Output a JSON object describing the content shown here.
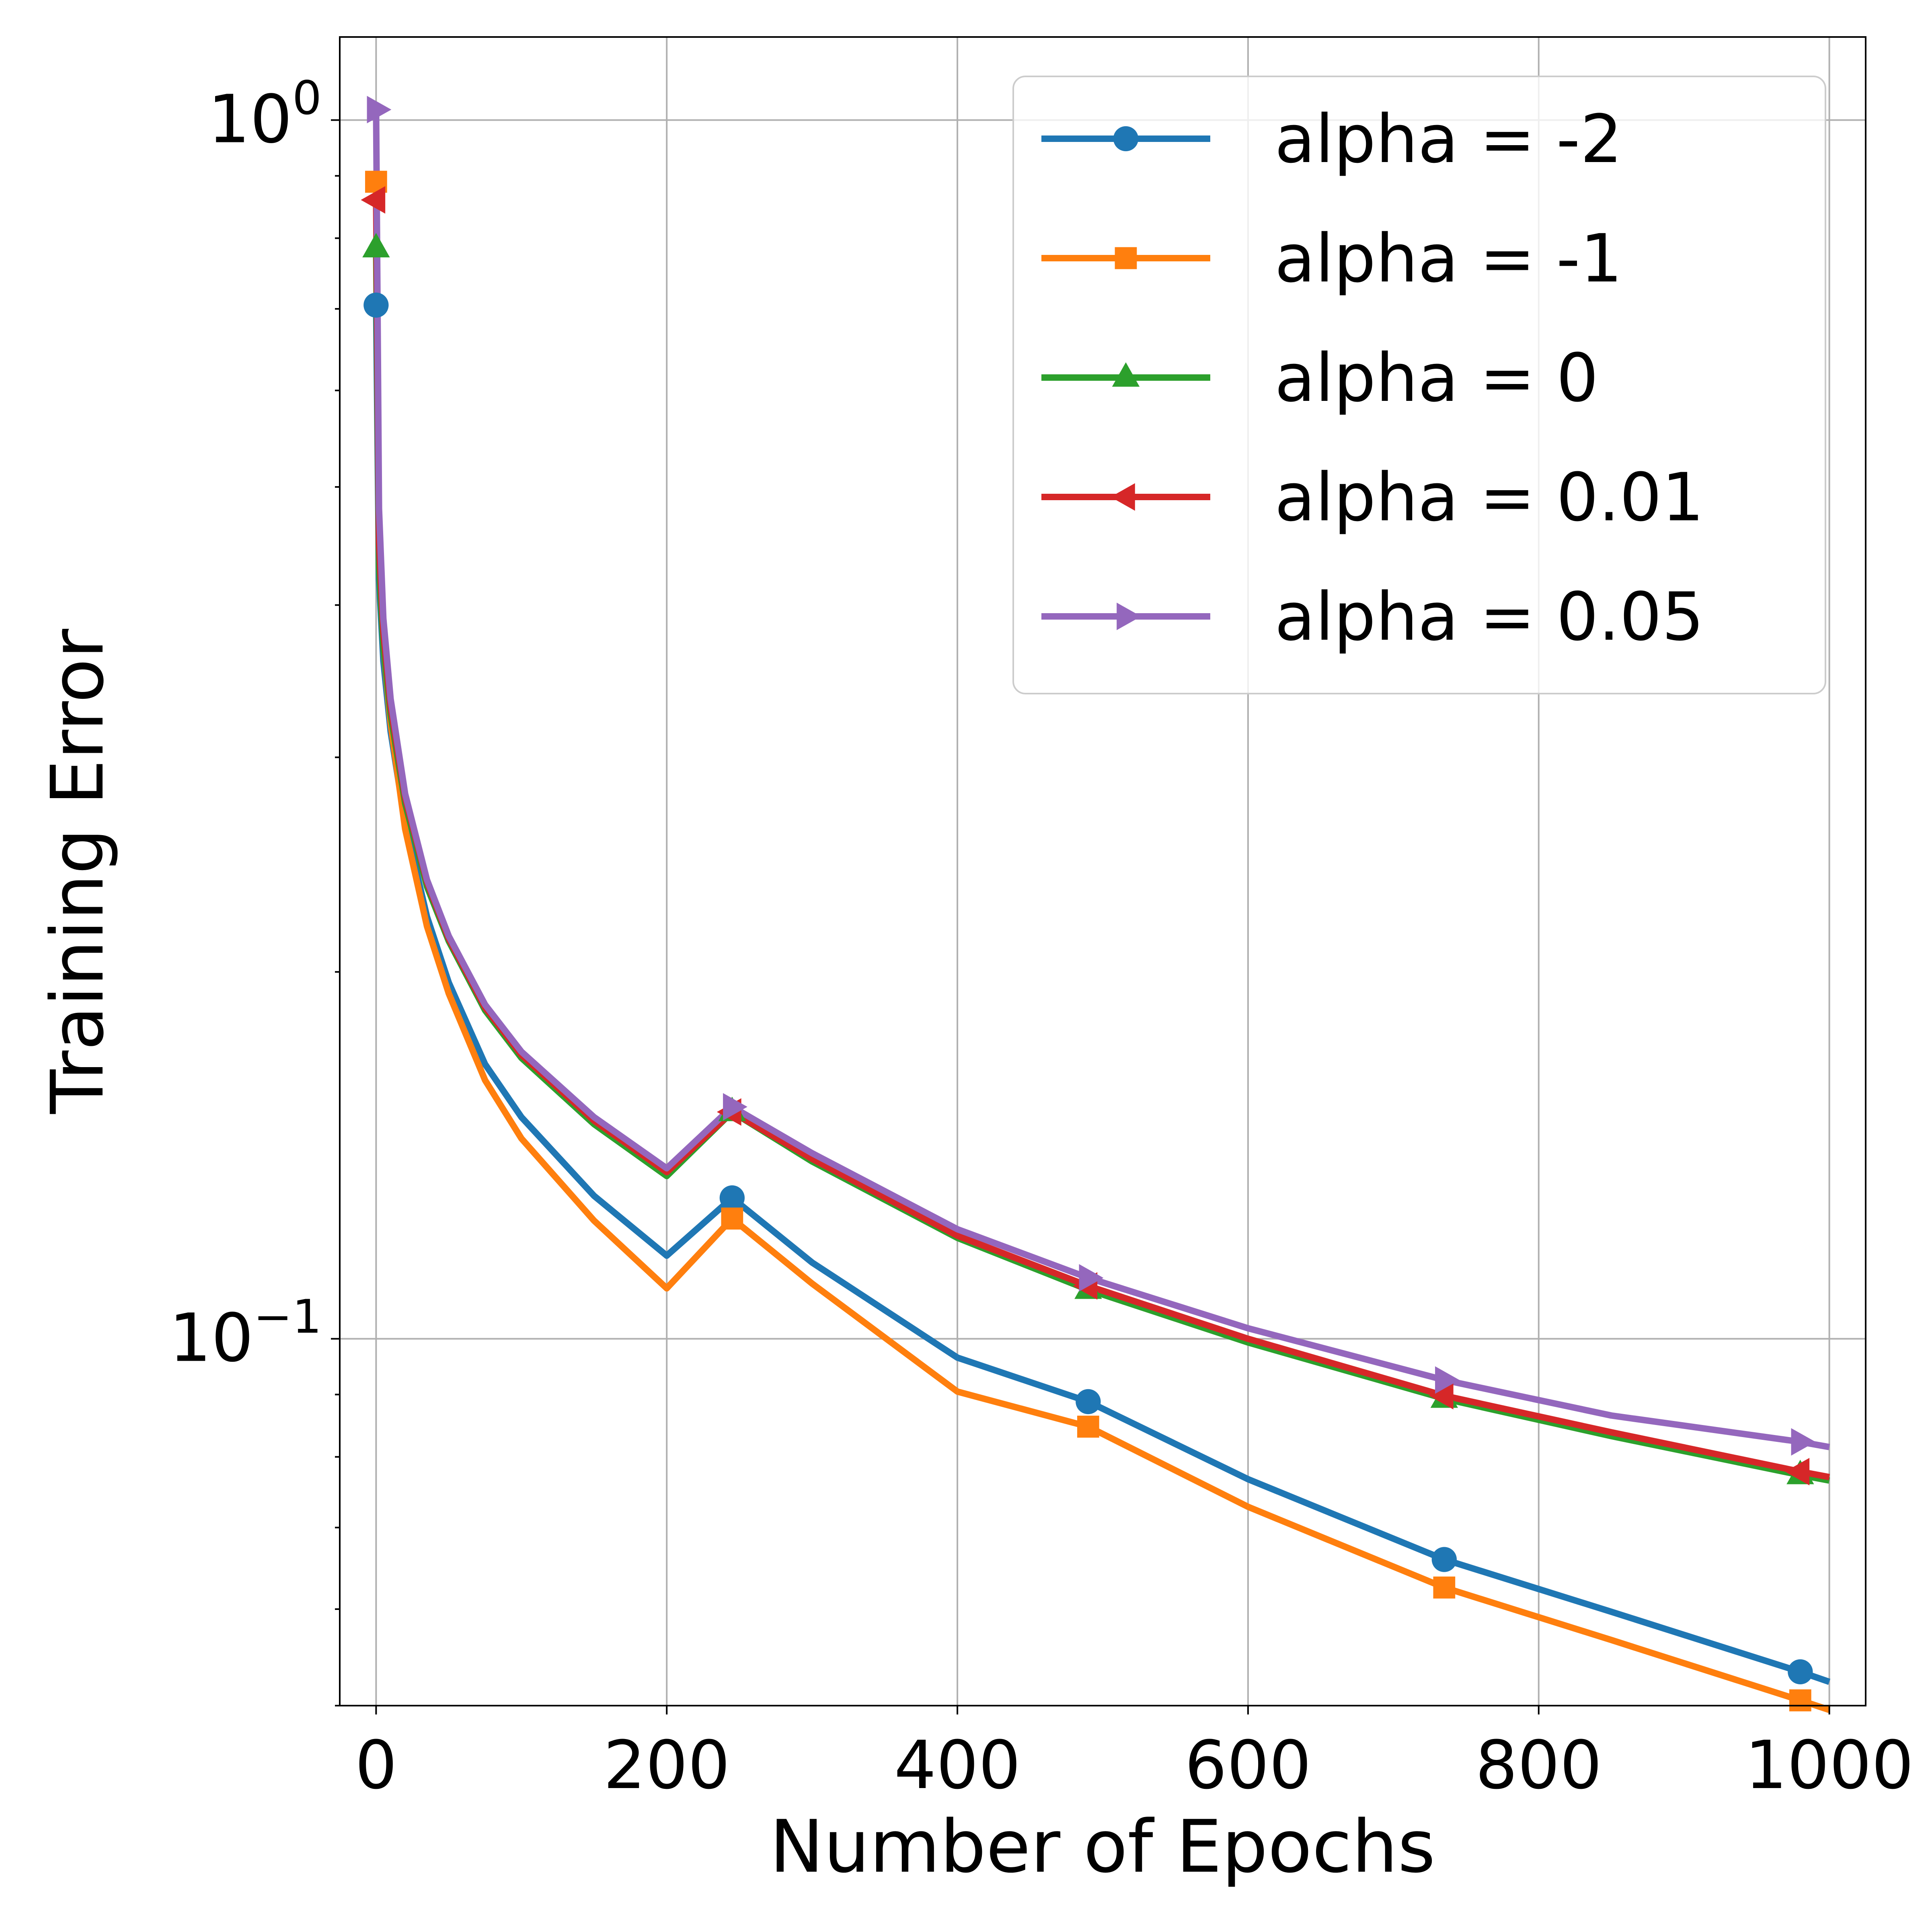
{
  "chart_data": {
    "type": "line",
    "title": "",
    "xlabel": "Number of Epochs",
    "ylabel": "Training Error",
    "xscale": "linear",
    "yscale": "log",
    "xlim": [
      -25,
      1025
    ],
    "ylim": [
      0.05,
      1.17
    ],
    "grid": true,
    "legend_position": "top-right",
    "x_ticks": [
      {
        "value": 0,
        "label": "0"
      },
      {
        "value": 200,
        "label": "200"
      },
      {
        "value": 400,
        "label": "400"
      },
      {
        "value": 600,
        "label": "600"
      },
      {
        "value": 800,
        "label": "800"
      },
      {
        "value": 1000,
        "label": "1000"
      }
    ],
    "y_ticks": [
      {
        "value": 1,
        "base": "10",
        "exponent": "0"
      },
      {
        "value": 0.1,
        "base": "10",
        "exponent": "−1"
      }
    ],
    "y_minor_ticks": [
      0.05,
      0.06,
      0.07,
      0.08,
      0.09,
      0.2,
      0.3,
      0.4,
      0.5,
      0.6,
      0.7,
      0.8,
      0.9
    ],
    "series": [
      {
        "name": "alpha = -2",
        "color": "#1f77b4",
        "marker": "circle",
        "curve_x": [
          0,
          2,
          5,
          10,
          20,
          35,
          50,
          75,
          100,
          150,
          200,
          245,
          300,
          400,
          490,
          600,
          735,
          850,
          980,
          1000
        ],
        "curve_y": [
          0.705,
          0.42,
          0.36,
          0.315,
          0.265,
          0.222,
          0.196,
          0.168,
          0.152,
          0.131,
          0.117,
          0.1305,
          0.1155,
          0.0965,
          0.0888,
          0.0767,
          0.0659,
          0.0597,
          0.0533,
          0.0523
        ],
        "marker_x": [
          0,
          245,
          490,
          735,
          980
        ],
        "marker_y": [
          0.705,
          0.1305,
          0.0888,
          0.0659,
          0.0533
        ]
      },
      {
        "name": "alpha = -1",
        "color": "#ff7f0e",
        "marker": "square",
        "curve_x": [
          0,
          2,
          5,
          10,
          20,
          35,
          50,
          75,
          100,
          150,
          200,
          245,
          300,
          400,
          490,
          600,
          735,
          850,
          980,
          1000
        ],
        "curve_y": [
          0.89,
          0.45,
          0.37,
          0.32,
          0.262,
          0.218,
          0.192,
          0.163,
          0.146,
          0.125,
          0.11,
          0.1255,
          0.111,
          0.0905,
          0.0847,
          0.0728,
          0.0625,
          0.0566,
          0.0505,
          0.0496
        ],
        "marker_x": [
          0,
          245,
          490,
          735,
          980
        ],
        "marker_y": [
          0.89,
          0.1255,
          0.0847,
          0.0625,
          0.0505
        ]
      },
      {
        "name": "alpha = 0",
        "color": "#2ca02c",
        "marker": "triangle-up",
        "curve_x": [
          0,
          2,
          5,
          10,
          20,
          35,
          50,
          75,
          100,
          150,
          200,
          245,
          300,
          400,
          490,
          600,
          735,
          850,
          980,
          1000
        ],
        "curve_y": [
          0.785,
          0.43,
          0.37,
          0.325,
          0.275,
          0.235,
          0.212,
          0.186,
          0.17,
          0.15,
          0.136,
          0.1535,
          0.1398,
          0.121,
          0.1097,
          0.0993,
          0.0893,
          0.0832,
          0.0773,
          0.0765
        ],
        "marker_x": [
          0,
          245,
          490,
          735,
          980
        ],
        "marker_y": [
          0.785,
          0.1535,
          0.1097,
          0.0893,
          0.0773
        ]
      },
      {
        "name": "alpha = 0.01",
        "color": "#d62728",
        "marker": "triangle-left",
        "curve_x": [
          0,
          2,
          5,
          10,
          20,
          35,
          50,
          75,
          100,
          150,
          200,
          245,
          300,
          400,
          490,
          600,
          735,
          850,
          980,
          1000
        ],
        "curve_y": [
          0.86,
          0.45,
          0.38,
          0.33,
          0.278,
          0.237,
          0.213,
          0.187,
          0.171,
          0.151,
          0.137,
          0.1535,
          0.1405,
          0.1215,
          0.1105,
          0.1,
          0.0898,
          0.0838,
          0.0778,
          0.077
        ],
        "marker_x": [
          0,
          245,
          490,
          735,
          980
        ],
        "marker_y": [
          0.86,
          0.1535,
          0.1105,
          0.0898,
          0.0778
        ]
      },
      {
        "name": "alpha = 0.05",
        "color": "#9467bd",
        "marker": "triangle-right",
        "curve_x": [
          0,
          2,
          5,
          10,
          20,
          35,
          50,
          75,
          100,
          150,
          200,
          245,
          300,
          400,
          490,
          600,
          735,
          850,
          980,
          1000
        ],
        "curve_y": [
          1.02,
          0.48,
          0.39,
          0.335,
          0.28,
          0.238,
          0.214,
          0.188,
          0.172,
          0.152,
          0.138,
          0.155,
          0.142,
          0.123,
          0.1122,
          0.102,
          0.0925,
          0.0865,
          0.0823,
          0.0815
        ],
        "marker_x": [
          0,
          245,
          490,
          735,
          980
        ],
        "marker_y": [
          1.02,
          0.155,
          0.1122,
          0.0925,
          0.0823
        ]
      }
    ]
  }
}
